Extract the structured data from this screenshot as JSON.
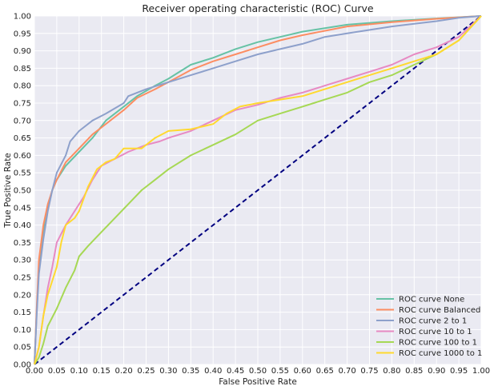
{
  "chart_data": {
    "type": "line",
    "title": "Receiver operating characteristic (ROC) Curve",
    "xlabel": "False Positive Rate",
    "ylabel": "True Positive Rate",
    "xlim": [
      0,
      1
    ],
    "ylim": [
      0,
      1
    ],
    "grid": true,
    "legend_position": "lower-right",
    "x_ticks": [
      "0.00",
      "0.05",
      "0.10",
      "0.15",
      "0.20",
      "0.25",
      "0.30",
      "0.35",
      "0.40",
      "0.45",
      "0.50",
      "0.55",
      "0.60",
      "0.65",
      "0.70",
      "0.75",
      "0.80",
      "0.85",
      "0.90",
      "0.95",
      "1.00"
    ],
    "y_ticks": [
      "0.00",
      "0.05",
      "0.10",
      "0.15",
      "0.20",
      "0.25",
      "0.30",
      "0.35",
      "0.40",
      "0.45",
      "0.50",
      "0.55",
      "0.60",
      "0.65",
      "0.70",
      "0.75",
      "0.80",
      "0.85",
      "0.90",
      "0.95",
      "1.00"
    ],
    "series": [
      {
        "name": "ROC curve None",
        "color": "#66c2a5",
        "points": [
          [
            0,
            0
          ],
          [
            0.005,
            0.15
          ],
          [
            0.01,
            0.28
          ],
          [
            0.02,
            0.38
          ],
          [
            0.03,
            0.45
          ],
          [
            0.04,
            0.5
          ],
          [
            0.05,
            0.53
          ],
          [
            0.07,
            0.57
          ],
          [
            0.1,
            0.61
          ],
          [
            0.13,
            0.65
          ],
          [
            0.16,
            0.7
          ],
          [
            0.2,
            0.74
          ],
          [
            0.23,
            0.77
          ],
          [
            0.27,
            0.8
          ],
          [
            0.3,
            0.82
          ],
          [
            0.35,
            0.86
          ],
          [
            0.4,
            0.88
          ],
          [
            0.45,
            0.905
          ],
          [
            0.5,
            0.925
          ],
          [
            0.55,
            0.94
          ],
          [
            0.6,
            0.955
          ],
          [
            0.65,
            0.965
          ],
          [
            0.7,
            0.975
          ],
          [
            0.8,
            0.985
          ],
          [
            0.9,
            0.993
          ],
          [
            1.0,
            1.0
          ]
        ]
      },
      {
        "name": "ROC curve Balanced",
        "color": "#fc8d62",
        "points": [
          [
            0,
            0
          ],
          [
            0.005,
            0.16
          ],
          [
            0.01,
            0.3
          ],
          [
            0.02,
            0.4
          ],
          [
            0.03,
            0.46
          ],
          [
            0.04,
            0.5
          ],
          [
            0.05,
            0.53
          ],
          [
            0.07,
            0.58
          ],
          [
            0.1,
            0.62
          ],
          [
            0.13,
            0.66
          ],
          [
            0.15,
            0.68
          ],
          [
            0.2,
            0.73
          ],
          [
            0.23,
            0.765
          ],
          [
            0.27,
            0.79
          ],
          [
            0.3,
            0.81
          ],
          [
            0.35,
            0.845
          ],
          [
            0.4,
            0.87
          ],
          [
            0.45,
            0.89
          ],
          [
            0.5,
            0.91
          ],
          [
            0.55,
            0.93
          ],
          [
            0.6,
            0.945
          ],
          [
            0.7,
            0.97
          ],
          [
            0.8,
            0.982
          ],
          [
            0.9,
            0.992
          ],
          [
            1.0,
            1.0
          ]
        ]
      },
      {
        "name": "ROC curve 2 to 1",
        "color": "#8da0cb",
        "points": [
          [
            0,
            0
          ],
          [
            0.005,
            0.14
          ],
          [
            0.01,
            0.26
          ],
          [
            0.02,
            0.36
          ],
          [
            0.03,
            0.44
          ],
          [
            0.04,
            0.5
          ],
          [
            0.05,
            0.55
          ],
          [
            0.07,
            0.6
          ],
          [
            0.08,
            0.64
          ],
          [
            0.1,
            0.67
          ],
          [
            0.13,
            0.7
          ],
          [
            0.16,
            0.72
          ],
          [
            0.2,
            0.75
          ],
          [
            0.21,
            0.77
          ],
          [
            0.25,
            0.79
          ],
          [
            0.3,
            0.81
          ],
          [
            0.35,
            0.83
          ],
          [
            0.4,
            0.85
          ],
          [
            0.45,
            0.87
          ],
          [
            0.5,
            0.89
          ],
          [
            0.55,
            0.905
          ],
          [
            0.6,
            0.92
          ],
          [
            0.65,
            0.94
          ],
          [
            0.7,
            0.95
          ],
          [
            0.8,
            0.97
          ],
          [
            0.9,
            0.985
          ],
          [
            0.95,
            0.995
          ],
          [
            1.0,
            1.0
          ]
        ]
      },
      {
        "name": "ROC curve 10 to 1",
        "color": "#e78ac3",
        "points": [
          [
            0,
            0
          ],
          [
            0.01,
            0.05
          ],
          [
            0.02,
            0.14
          ],
          [
            0.03,
            0.22
          ],
          [
            0.04,
            0.28
          ],
          [
            0.05,
            0.35
          ],
          [
            0.07,
            0.4
          ],
          [
            0.09,
            0.44
          ],
          [
            0.11,
            0.48
          ],
          [
            0.13,
            0.53
          ],
          [
            0.15,
            0.57
          ],
          [
            0.18,
            0.59
          ],
          [
            0.21,
            0.61
          ],
          [
            0.25,
            0.63
          ],
          [
            0.28,
            0.64
          ],
          [
            0.3,
            0.65
          ],
          [
            0.35,
            0.67
          ],
          [
            0.4,
            0.7
          ],
          [
            0.45,
            0.73
          ],
          [
            0.5,
            0.745
          ],
          [
            0.55,
            0.765
          ],
          [
            0.6,
            0.78
          ],
          [
            0.65,
            0.8
          ],
          [
            0.7,
            0.82
          ],
          [
            0.75,
            0.84
          ],
          [
            0.8,
            0.86
          ],
          [
            0.85,
            0.89
          ],
          [
            0.9,
            0.91
          ],
          [
            0.95,
            0.94
          ],
          [
            1.0,
            1.0
          ]
        ]
      },
      {
        "name": "ROC curve 100 to 1",
        "color": "#a6d854",
        "points": [
          [
            0,
            0
          ],
          [
            0.01,
            0.02
          ],
          [
            0.02,
            0.06
          ],
          [
            0.03,
            0.11
          ],
          [
            0.05,
            0.16
          ],
          [
            0.07,
            0.22
          ],
          [
            0.09,
            0.27
          ],
          [
            0.1,
            0.31
          ],
          [
            0.12,
            0.34
          ],
          [
            0.15,
            0.38
          ],
          [
            0.18,
            0.42
          ],
          [
            0.21,
            0.46
          ],
          [
            0.24,
            0.5
          ],
          [
            0.27,
            0.53
          ],
          [
            0.3,
            0.56
          ],
          [
            0.35,
            0.6
          ],
          [
            0.4,
            0.63
          ],
          [
            0.45,
            0.66
          ],
          [
            0.5,
            0.7
          ],
          [
            0.55,
            0.72
          ],
          [
            0.6,
            0.74
          ],
          [
            0.65,
            0.76
          ],
          [
            0.7,
            0.78
          ],
          [
            0.75,
            0.81
          ],
          [
            0.8,
            0.83
          ],
          [
            0.85,
            0.86
          ],
          [
            0.9,
            0.89
          ],
          [
            0.95,
            0.93
          ],
          [
            1.0,
            1.0
          ]
        ]
      },
      {
        "name": "ROC curve 1000 to 1",
        "color": "#ffd92f",
        "points": [
          [
            0,
            0
          ],
          [
            0.01,
            0.05
          ],
          [
            0.02,
            0.14
          ],
          [
            0.03,
            0.2
          ],
          [
            0.05,
            0.28
          ],
          [
            0.06,
            0.35
          ],
          [
            0.07,
            0.4
          ],
          [
            0.09,
            0.42
          ],
          [
            0.1,
            0.44
          ],
          [
            0.12,
            0.51
          ],
          [
            0.14,
            0.56
          ],
          [
            0.16,
            0.58
          ],
          [
            0.18,
            0.59
          ],
          [
            0.2,
            0.62
          ],
          [
            0.24,
            0.62
          ],
          [
            0.27,
            0.65
          ],
          [
            0.3,
            0.67
          ],
          [
            0.35,
            0.675
          ],
          [
            0.4,
            0.69
          ],
          [
            0.43,
            0.72
          ],
          [
            0.46,
            0.74
          ],
          [
            0.5,
            0.75
          ],
          [
            0.55,
            0.76
          ],
          [
            0.6,
            0.77
          ],
          [
            0.65,
            0.79
          ],
          [
            0.7,
            0.81
          ],
          [
            0.75,
            0.83
          ],
          [
            0.8,
            0.85
          ],
          [
            0.85,
            0.87
          ],
          [
            0.9,
            0.89
          ],
          [
            0.95,
            0.93
          ],
          [
            1.0,
            1.0
          ]
        ]
      }
    ],
    "reference_line": {
      "color": "#000080",
      "style": "dashed",
      "points": [
        [
          0,
          0
        ],
        [
          1,
          1
        ]
      ]
    }
  }
}
